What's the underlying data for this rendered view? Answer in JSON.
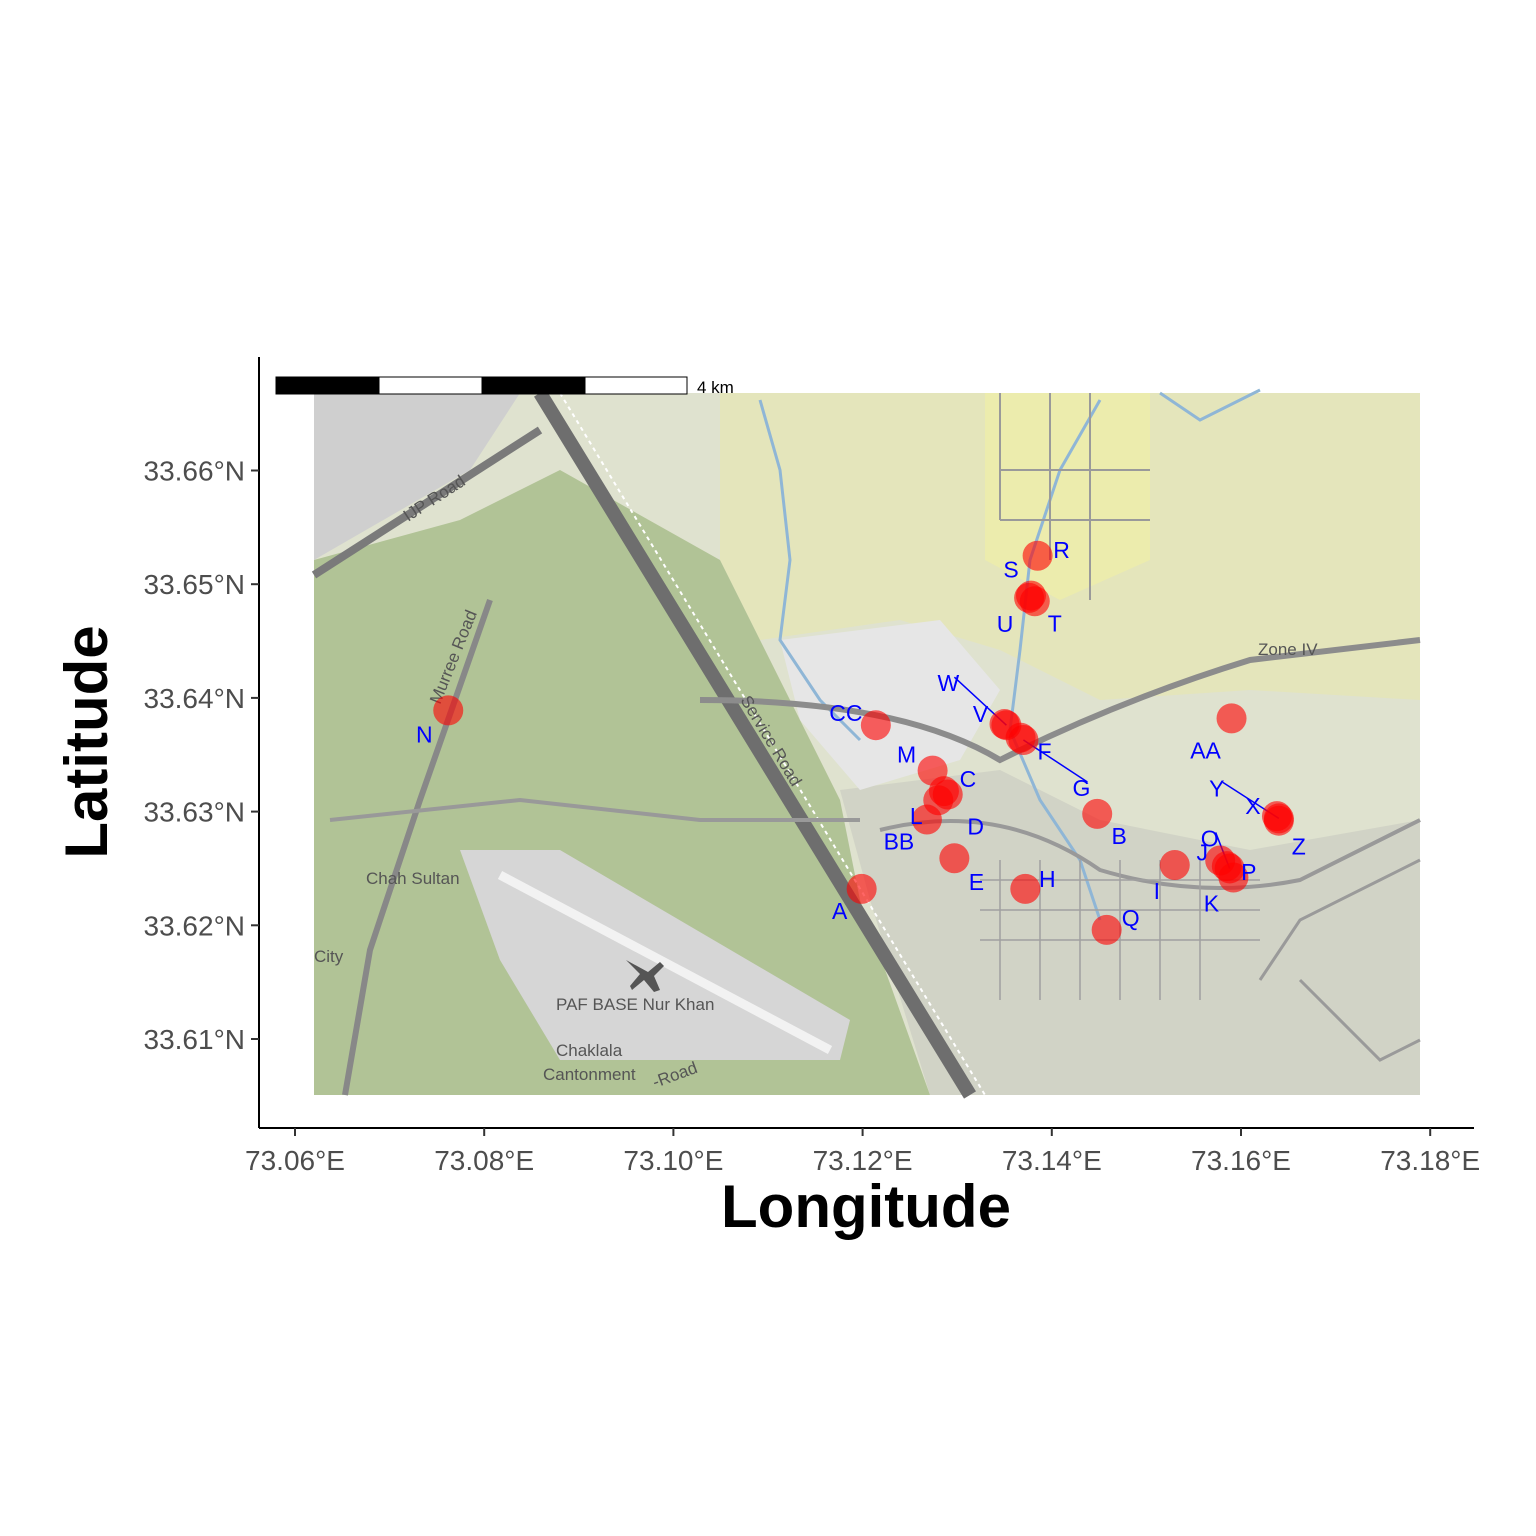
{
  "axes": {
    "xlabel": "Longitude",
    "ylabel": "Latitude",
    "x_ticks": [
      {
        "value": 73.06,
        "label": "73.06°E"
      },
      {
        "value": 73.08,
        "label": "73.08°E"
      },
      {
        "value": 73.1,
        "label": "73.10°E"
      },
      {
        "value": 73.12,
        "label": "73.12°E"
      },
      {
        "value": 73.14,
        "label": "73.14°E"
      },
      {
        "value": 73.16,
        "label": "73.16°E"
      },
      {
        "value": 73.18,
        "label": "73.18°E"
      }
    ],
    "y_ticks": [
      {
        "value": 33.61,
        "label": "33.61°N"
      },
      {
        "value": 33.62,
        "label": "33.62°N"
      },
      {
        "value": 33.63,
        "label": "33.63°N"
      },
      {
        "value": 33.64,
        "label": "33.64°N"
      },
      {
        "value": 33.65,
        "label": "33.65°N"
      },
      {
        "value": 33.66,
        "label": "33.66°N"
      }
    ]
  },
  "scale_bar": {
    "label": "4 km"
  },
  "basemap_labels": [
    "IJP Road",
    "Murree Road",
    "Service Road",
    "Zone IV",
    "Chah Sultan",
    "PAF BASE Nur Khan",
    "Chaklala",
    "Cantonment",
    "City",
    "-Road"
  ],
  "point_color": "#ff0000",
  "label_color": "#0000ff",
  "chart_data": {
    "type": "scatter",
    "title": "",
    "xlabel": "Longitude",
    "ylabel": "Latitude",
    "xlim": [
      73.058,
      73.183
    ],
    "ylim": [
      33.6036,
      33.6684
    ],
    "grid": false,
    "points": [
      {
        "label": "A",
        "x": 73.1199,
        "y": 33.6232
      },
      {
        "label": "B",
        "x": 73.1448,
        "y": 33.6298
      },
      {
        "label": "C",
        "x": 73.1286,
        "y": 33.6318
      },
      {
        "label": "D",
        "x": 73.129,
        "y": 33.6315
      },
      {
        "label": "E",
        "x": 73.1297,
        "y": 33.6259
      },
      {
        "label": "F",
        "x": 73.1367,
        "y": 33.6365
      },
      {
        "label": "G",
        "x": 73.137,
        "y": 33.6363
      },
      {
        "label": "H",
        "x": 73.1372,
        "y": 33.6232
      },
      {
        "label": "I",
        "x": 73.153,
        "y": 33.6253
      },
      {
        "label": "J",
        "x": 73.1578,
        "y": 33.6257
      },
      {
        "label": "K",
        "x": 73.1592,
        "y": 33.6242
      },
      {
        "label": "L",
        "x": 73.128,
        "y": 33.631
      },
      {
        "label": "M",
        "x": 73.1274,
        "y": 33.6336
      },
      {
        "label": "N",
        "x": 73.0762,
        "y": 33.6389
      },
      {
        "label": "O",
        "x": 73.1588,
        "y": 33.625
      },
      {
        "label": "P",
        "x": 73.1585,
        "y": 33.6252
      },
      {
        "label": "Q",
        "x": 73.1458,
        "y": 33.6196
      },
      {
        "label": "R",
        "x": 73.1385,
        "y": 33.6525
      },
      {
        "label": "S",
        "x": 73.1378,
        "y": 33.649
      },
      {
        "label": "T",
        "x": 73.1382,
        "y": 33.6485
      },
      {
        "label": "U",
        "x": 73.1376,
        "y": 33.6488
      },
      {
        "label": "V",
        "x": 73.135,
        "y": 33.6377
      },
      {
        "label": "W",
        "x": 73.1352,
        "y": 33.6376
      },
      {
        "label": "X",
        "x": 73.1638,
        "y": 33.6296
      },
      {
        "label": "Y",
        "x": 73.164,
        "y": 33.6294
      },
      {
        "label": "Z",
        "x": 73.164,
        "y": 33.6292
      },
      {
        "label": "AA",
        "x": 73.159,
        "y": 33.6382
      },
      {
        "label": "BB",
        "x": 73.1268,
        "y": 33.6293
      },
      {
        "label": "CC",
        "x": 73.1214,
        "y": 33.6376
      }
    ]
  }
}
